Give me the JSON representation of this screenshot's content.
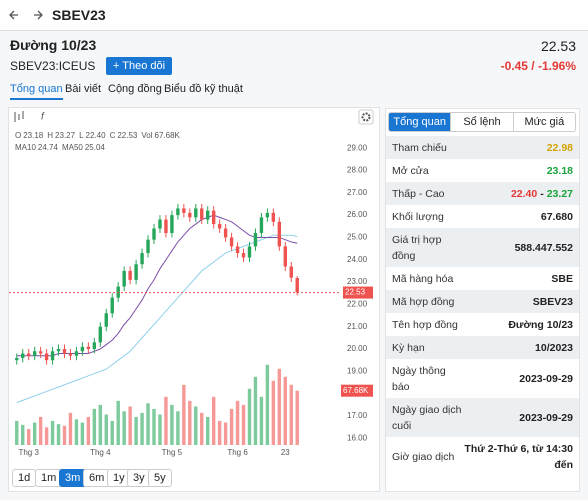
{
  "nav": {
    "title": "SBEV23"
  },
  "header": {
    "name": "Đường 10/23",
    "symbol": "SBEV23:ICEUS",
    "follow": "Theo dõi",
    "price": "22.53",
    "change": "-0.45 / -1.96%"
  },
  "tabs": [
    "Tổng quan",
    "Bài viết",
    "Cộng đồng",
    "Biểu đồ kỹ thuật"
  ],
  "chart_data": {
    "type": "candlestick",
    "legend": [
      {
        "label": "O",
        "value": "23.18"
      },
      {
        "label": "H",
        "value": "23.27"
      },
      {
        "label": "L",
        "value": "22.40"
      },
      {
        "label": "C",
        "value": "22.53"
      },
      {
        "label": "Vol",
        "value": "67.68K"
      }
    ],
    "ma_legend": [
      {
        "label": "MA10",
        "value": "24.74",
        "color": "#7b4fa8"
      },
      {
        "label": "MA50",
        "value": "25.04",
        "color": "#8fd0ec"
      }
    ],
    "up_color": "#26a65b",
    "down_color": "#ef5350",
    "open": [
      19.5,
      19.6,
      19.8,
      19.7,
      19.9,
      19.8,
      19.5,
      19.9,
      20.0,
      19.8,
      19.7,
      19.9,
      20.1,
      20.0,
      20.3,
      21.0,
      21.6,
      22.3,
      22.8,
      23.5,
      23.1,
      23.8,
      24.3,
      24.9,
      25.4,
      25.8,
      25.2,
      26.0,
      26.3,
      26.1,
      25.9,
      26.3,
      25.8,
      26.2,
      25.6,
      25.4,
      25.0,
      24.6,
      24.3,
      24.1,
      24.6,
      25.2,
      25.9,
      26.1,
      25.7,
      24.6,
      23.7,
      23.18
    ],
    "high": [
      19.8,
      20.0,
      20.0,
      20.1,
      20.1,
      20.0,
      20.1,
      20.2,
      20.2,
      20.0,
      20.1,
      20.3,
      20.3,
      20.5,
      21.2,
      21.8,
      22.5,
      23.0,
      23.7,
      23.7,
      24.0,
      24.5,
      25.1,
      25.6,
      26.0,
      26.0,
      26.2,
      26.5,
      26.5,
      26.3,
      26.5,
      26.5,
      26.4,
      26.4,
      25.8,
      25.6,
      25.2,
      24.8,
      24.5,
      24.8,
      25.4,
      26.1,
      26.3,
      26.3,
      25.9,
      24.8,
      23.9,
      23.27
    ],
    "low": [
      19.3,
      19.4,
      19.5,
      19.5,
      19.6,
      19.3,
      19.3,
      19.7,
      19.6,
      19.5,
      19.5,
      19.7,
      19.8,
      19.8,
      20.1,
      20.8,
      21.4,
      22.1,
      22.6,
      22.9,
      22.9,
      23.6,
      24.1,
      24.7,
      25.2,
      25.0,
      25.0,
      25.8,
      25.9,
      25.7,
      25.7,
      25.6,
      25.6,
      25.4,
      25.2,
      24.8,
      24.4,
      24.1,
      23.9,
      23.9,
      24.4,
      25.0,
      25.7,
      25.5,
      24.4,
      23.5,
      23.0,
      22.4
    ],
    "close": [
      19.6,
      19.8,
      19.7,
      19.9,
      19.8,
      19.5,
      19.9,
      20.0,
      19.8,
      19.7,
      19.9,
      20.1,
      20.0,
      20.3,
      21.0,
      21.6,
      22.3,
      22.8,
      23.5,
      23.1,
      23.8,
      24.3,
      24.9,
      25.4,
      25.8,
      25.2,
      26.0,
      26.3,
      26.1,
      25.9,
      26.3,
      25.8,
      26.2,
      25.6,
      25.4,
      25.0,
      24.6,
      24.3,
      24.1,
      24.6,
      25.2,
      25.9,
      26.1,
      25.7,
      24.6,
      23.7,
      23.2,
      22.53
    ],
    "volume": [
      30,
      25,
      20,
      28,
      35,
      22,
      30,
      26,
      24,
      40,
      32,
      28,
      35,
      45,
      50,
      38,
      30,
      55,
      42,
      48,
      35,
      40,
      52,
      45,
      38,
      60,
      50,
      42,
      75,
      55,
      48,
      40,
      35,
      60,
      30,
      28,
      45,
      55,
      50,
      70,
      85,
      60,
      100,
      80,
      95,
      85,
      75,
      67.68
    ],
    "ma10": [
      19.7,
      19.7,
      19.7,
      19.7,
      19.7,
      19.7,
      19.7,
      19.8,
      19.8,
      19.8,
      19.8,
      19.8,
      19.8,
      19.9,
      20.0,
      20.2,
      20.4,
      20.7,
      21.1,
      21.4,
      21.8,
      22.2,
      22.7,
      23.1,
      23.6,
      24.0,
      24.4,
      24.8,
      25.1,
      25.4,
      25.6,
      25.8,
      25.9,
      26.0,
      25.9,
      25.8,
      25.7,
      25.5,
      25.3,
      25.1,
      25.0,
      25.0,
      25.0,
      25.0,
      25.0,
      24.9,
      24.8,
      24.74
    ],
    "ma50": [
      17.6,
      17.7,
      17.8,
      17.9,
      18.0,
      18.1,
      18.2,
      18.3,
      18.4,
      18.5,
      18.6,
      18.7,
      18.8,
      18.9,
      19.0,
      19.1,
      19.3,
      19.5,
      19.7,
      19.9,
      20.2,
      20.5,
      20.8,
      21.1,
      21.4,
      21.7,
      22.0,
      22.3,
      22.6,
      22.9,
      23.2,
      23.5,
      23.7,
      23.9,
      24.1,
      24.3,
      24.4,
      24.5,
      24.6,
      24.7,
      24.8,
      24.9,
      25.0,
      25.1,
      25.1,
      25.1,
      25.1,
      25.04
    ],
    "xlim": [
      -1.3,
      54
    ],
    "ylim": [
      15.7,
      30.8
    ],
    "volume_lim": [
      0,
      420
    ],
    "yticks": [
      {
        "value": 16,
        "label": "16.00"
      },
      {
        "value": 17,
        "label": "17.00"
      },
      {
        "value": 18,
        "label": "18.00"
      },
      {
        "value": 19,
        "label": "19.00"
      },
      {
        "value": 20,
        "label": "20.00"
      },
      {
        "value": 21,
        "label": "21.00"
      },
      {
        "value": 22,
        "label": "22.00"
      },
      {
        "value": 23,
        "label": "23.00"
      },
      {
        "value": 24,
        "label": "24.00"
      },
      {
        "value": 25,
        "label": "25.00"
      },
      {
        "value": 26,
        "label": "26.00"
      },
      {
        "value": 27,
        "label": "27.00"
      },
      {
        "value": 28,
        "label": "28.00"
      },
      {
        "value": 29,
        "label": "29.00"
      }
    ],
    "xticks": [
      {
        "value": 2,
        "label": "Thg 3"
      },
      {
        "value": 14,
        "label": "Thg 4"
      },
      {
        "value": 26,
        "label": "Thg 5"
      },
      {
        "value": 37,
        "label": "Thg 6"
      },
      {
        "value": 45,
        "label": "23"
      }
    ],
    "last_label": "22.53",
    "volume_label": "67.68K"
  },
  "periods": [
    "1d",
    "1m",
    "3m",
    "6m",
    "1y",
    "3y",
    "5y"
  ],
  "quote": {
    "tabs": [
      "Tổng quan",
      "Sổ lệnh",
      "Mức giá"
    ],
    "rows": [
      {
        "label": "Tham chiếu",
        "value": "22.98",
        "color": "#d4a400"
      },
      {
        "label": "Mở cửa",
        "value": "23.18",
        "color": "#1aa33a"
      },
      {
        "label": "Thấp - Cao",
        "low": "22.40",
        "sep": "-",
        "high": "23.27",
        "low_color": "#e53935",
        "high_color": "#1aa33a"
      },
      {
        "label": "Khối lượng",
        "value": "67.680"
      },
      {
        "label": "Giá trị hợp đồng",
        "value": "588.447.552"
      },
      {
        "label": "Mã hàng hóa",
        "value": "SBE"
      },
      {
        "label": "Mã hợp đồng",
        "value": "SBEV23"
      },
      {
        "label": "Tên hợp đồng",
        "value": "Đường 10/23"
      },
      {
        "label": "Kỳ hạn",
        "value": "10/2023"
      },
      {
        "label": "Ngày thông báo",
        "value": "2023-09-29"
      },
      {
        "label": "Ngày giao dịch cuối",
        "value": "2023-09-29"
      },
      {
        "label": "Giờ giao dịch",
        "value": "Thứ 2-Thứ 6, từ 14:30 đến"
      }
    ]
  }
}
